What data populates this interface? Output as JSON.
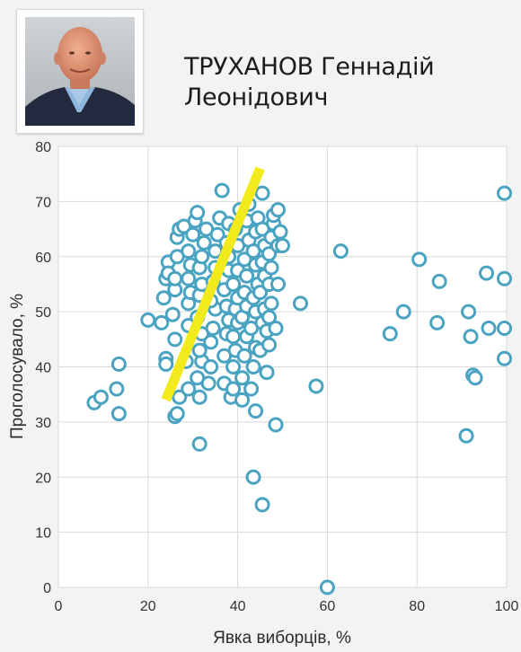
{
  "header": {
    "name_line1": "ТРУХАНОВ Геннадій",
    "name_line2": "Леонідович"
  },
  "colors": {
    "point_stroke": "#4aa3c1",
    "point_fill": "#ffffff",
    "trend_line": "#f2ea1c",
    "grid": "#d9d9d9",
    "plot_bg": "#ffffff",
    "page_bg": "#f3f3f3"
  },
  "chart_data": {
    "type": "scatter",
    "xlabel": "Явка виборців, %",
    "ylabel": "Проголосувало, %",
    "xlim": [
      0,
      100
    ],
    "ylim": [
      0,
      80
    ],
    "xticks": [
      0,
      20,
      40,
      60,
      80,
      100
    ],
    "yticks": [
      0,
      10,
      20,
      30,
      40,
      50,
      60,
      70,
      80
    ],
    "grid": true,
    "trend_line": [
      [
        24,
        34
      ],
      [
        45,
        76
      ]
    ],
    "points": [
      [
        8,
        33.5
      ],
      [
        9.5,
        34.5
      ],
      [
        13,
        36
      ],
      [
        13.5,
        40.5
      ],
      [
        13.5,
        31.5
      ],
      [
        20,
        48.5
      ],
      [
        23,
        48
      ],
      [
        24,
        41.5
      ],
      [
        24,
        40.5
      ],
      [
        23.5,
        52.5
      ],
      [
        24,
        56
      ],
      [
        24.5,
        59
      ],
      [
        24.5,
        57
      ],
      [
        26,
        31
      ],
      [
        26.5,
        31.5
      ],
      [
        27,
        34.5
      ],
      [
        26,
        45
      ],
      [
        25.5,
        49.5
      ],
      [
        26,
        54
      ],
      [
        26,
        56
      ],
      [
        26.5,
        60
      ],
      [
        26.5,
        63.5
      ],
      [
        27,
        65
      ],
      [
        28,
        65.5
      ],
      [
        29,
        36
      ],
      [
        28.5,
        41
      ],
      [
        29,
        47.5
      ],
      [
        29,
        51.5
      ],
      [
        29.5,
        53.5
      ],
      [
        29,
        56
      ],
      [
        29.5,
        58.5
      ],
      [
        29,
        61
      ],
      [
        30,
        64
      ],
      [
        30.5,
        66.5
      ],
      [
        31,
        68
      ],
      [
        31.5,
        26
      ],
      [
        31.5,
        34.5
      ],
      [
        31,
        38
      ],
      [
        32,
        41
      ],
      [
        31.5,
        43
      ],
      [
        32,
        46
      ],
      [
        31,
        49
      ],
      [
        31.5,
        53
      ],
      [
        32,
        55
      ],
      [
        31.5,
        58
      ],
      [
        32,
        60
      ],
      [
        32.5,
        62.5
      ],
      [
        33,
        65
      ],
      [
        33.5,
        37
      ],
      [
        34,
        40
      ],
      [
        34,
        44.5
      ],
      [
        34.5,
        47
      ],
      [
        35,
        50.5
      ],
      [
        34,
        52
      ],
      [
        34.5,
        55.5
      ],
      [
        35,
        58
      ],
      [
        35,
        61
      ],
      [
        35.5,
        64
      ],
      [
        36,
        67
      ],
      [
        36.5,
        72
      ],
      [
        37,
        37
      ],
      [
        37,
        42
      ],
      [
        37.5,
        46
      ],
      [
        38,
        48.5
      ],
      [
        37.5,
        51
      ],
      [
        37,
        54
      ],
      [
        38,
        57.5
      ],
      [
        38,
        60
      ],
      [
        37.5,
        62.5
      ],
      [
        38,
        66
      ],
      [
        38.5,
        34.5
      ],
      [
        39,
        36
      ],
      [
        39,
        40
      ],
      [
        39.5,
        43
      ],
      [
        39,
        45.5
      ],
      [
        40,
        48
      ],
      [
        39.5,
        50.5
      ],
      [
        40,
        52.5
      ],
      [
        39,
        55
      ],
      [
        40,
        57.5
      ],
      [
        40,
        62
      ],
      [
        39.5,
        65
      ],
      [
        40.5,
        68.5
      ],
      [
        41,
        34
      ],
      [
        41,
        38
      ],
      [
        41.5,
        42
      ],
      [
        42,
        45.5
      ],
      [
        41,
        49
      ],
      [
        42,
        51
      ],
      [
        41.5,
        53.5
      ],
      [
        42,
        56.5
      ],
      [
        41.5,
        59.5
      ],
      [
        42.5,
        63
      ],
      [
        42,
        66.5
      ],
      [
        42.5,
        69.5
      ],
      [
        43,
        36
      ],
      [
        43.5,
        40
      ],
      [
        44,
        43.5
      ],
      [
        43,
        47
      ],
      [
        44,
        50
      ],
      [
        43.5,
        52.5
      ],
      [
        44.5,
        55
      ],
      [
        44,
        58.5
      ],
      [
        43.5,
        61
      ],
      [
        44,
        64.5
      ],
      [
        44.5,
        67
      ],
      [
        43.5,
        20
      ],
      [
        44,
        32
      ],
      [
        45.5,
        15
      ],
      [
        45,
        43
      ],
      [
        45.5,
        48
      ],
      [
        46,
        50.5
      ],
      [
        45,
        53.5
      ],
      [
        46,
        56.5
      ],
      [
        45.5,
        59
      ],
      [
        46,
        62
      ],
      [
        45.5,
        65
      ],
      [
        45.5,
        71.5
      ],
      [
        46.5,
        39
      ],
      [
        47,
        44
      ],
      [
        46.5,
        46.5
      ],
      [
        47,
        49
      ],
      [
        47.5,
        51.5
      ],
      [
        47,
        55
      ],
      [
        47.5,
        58
      ],
      [
        47,
        60.5
      ],
      [
        47.5,
        63.5
      ],
      [
        48,
        66
      ],
      [
        48,
        67.5
      ],
      [
        48.5,
        29.5
      ],
      [
        48.5,
        47
      ],
      [
        49,
        55
      ],
      [
        49,
        62
      ],
      [
        49.5,
        64.5
      ],
      [
        49,
        68.5
      ],
      [
        50,
        62
      ],
      [
        54,
        51.5
      ],
      [
        57.5,
        36.5
      ],
      [
        60,
        0
      ],
      [
        63,
        61
      ],
      [
        74,
        46
      ],
      [
        77,
        50
      ],
      [
        80.5,
        59.5
      ],
      [
        84.5,
        48
      ],
      [
        85,
        55.5
      ],
      [
        91,
        27.5
      ],
      [
        91.5,
        50
      ],
      [
        92,
        45.5
      ],
      [
        92.5,
        38.5
      ],
      [
        93,
        38
      ],
      [
        95.5,
        57
      ],
      [
        96,
        47
      ],
      [
        99.5,
        71.5
      ],
      [
        99.5,
        56
      ],
      [
        99.5,
        47
      ],
      [
        99.5,
        41.5
      ]
    ]
  }
}
